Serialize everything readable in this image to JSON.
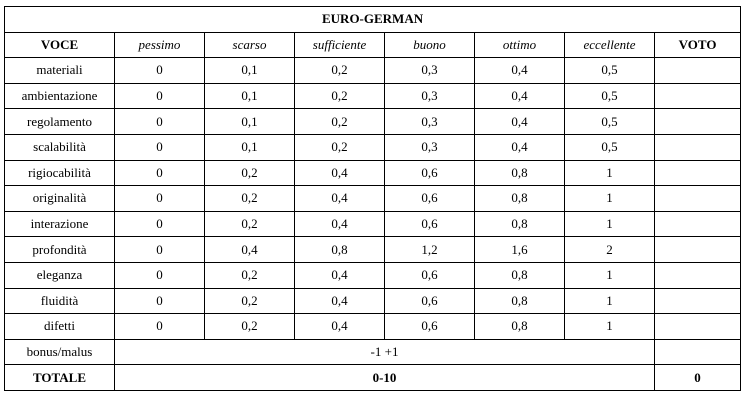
{
  "title": "EURO-GERMAN",
  "header": {
    "voce": "VOCE",
    "levels": [
      "pessimo",
      "scarso",
      "sufficiente",
      "buono",
      "ottimo",
      "eccellente"
    ],
    "voto": "VOTO"
  },
  "rows": [
    {
      "voce": "materiali",
      "values": [
        "0",
        "0,1",
        "0,2",
        "0,3",
        "0,4",
        "0,5"
      ],
      "voto": ""
    },
    {
      "voce": "ambientazione",
      "values": [
        "0",
        "0,1",
        "0,2",
        "0,3",
        "0,4",
        "0,5"
      ],
      "voto": ""
    },
    {
      "voce": "regolamento",
      "values": [
        "0",
        "0,1",
        "0,2",
        "0,3",
        "0,4",
        "0,5"
      ],
      "voto": ""
    },
    {
      "voce": "scalabilità",
      "values": [
        "0",
        "0,1",
        "0,2",
        "0,3",
        "0,4",
        "0,5"
      ],
      "voto": ""
    },
    {
      "voce": "rigiocabilità",
      "values": [
        "0",
        "0,2",
        "0,4",
        "0,6",
        "0,8",
        "1"
      ],
      "voto": ""
    },
    {
      "voce": "originalità",
      "values": [
        "0",
        "0,2",
        "0,4",
        "0,6",
        "0,8",
        "1"
      ],
      "voto": ""
    },
    {
      "voce": "interazione",
      "values": [
        "0",
        "0,2",
        "0,4",
        "0,6",
        "0,8",
        "1"
      ],
      "voto": ""
    },
    {
      "voce": "profondità",
      "values": [
        "0",
        "0,4",
        "0,8",
        "1,2",
        "1,6",
        "2"
      ],
      "voto": ""
    },
    {
      "voce": "eleganza",
      "values": [
        "0",
        "0,2",
        "0,4",
        "0,6",
        "0,8",
        "1"
      ],
      "voto": ""
    },
    {
      "voce": "fluidità",
      "values": [
        "0",
        "0,2",
        "0,4",
        "0,6",
        "0,8",
        "1"
      ],
      "voto": ""
    },
    {
      "voce": "difetti",
      "values": [
        "0",
        "0,2",
        "0,4",
        "0,6",
        "0,8",
        "1"
      ],
      "voto": ""
    }
  ],
  "bonus": {
    "label": "bonus/malus",
    "range": "-1 +1",
    "voto": ""
  },
  "totale": {
    "label": "TOTALE",
    "range": "0-10",
    "voto": "0"
  }
}
